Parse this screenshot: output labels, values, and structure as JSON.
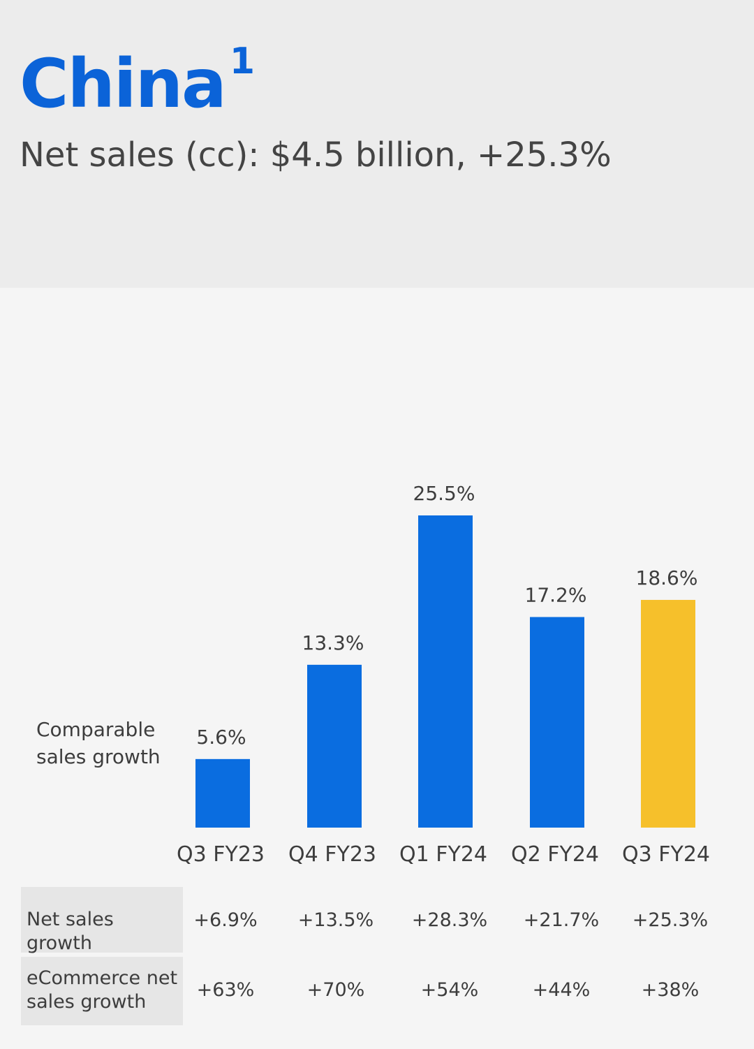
{
  "header": {
    "title": "China",
    "title_footnote": "1",
    "subtitle": "Net sales (cc): $4.5 billion, +25.3%"
  },
  "colors": {
    "title": "#0b63d8",
    "bar_primary": "#0a6de0",
    "bar_highlight": "#f6c02b"
  },
  "chart_data": {
    "type": "bar",
    "series_label": "Comparable sales growth",
    "categories": [
      "Q3 FY23",
      "Q4 FY23",
      "Q1 FY24",
      "Q2 FY24",
      "Q3 FY24"
    ],
    "values": [
      5.6,
      13.3,
      25.5,
      17.2,
      18.6
    ],
    "value_labels": [
      "5.6%",
      "13.3%",
      "25.5%",
      "17.2%",
      "18.6%"
    ],
    "highlight_index": 4,
    "ylim": [
      0,
      25.5
    ]
  },
  "table": {
    "rows": [
      {
        "label": "Net sales growth",
        "values": [
          "+6.9%",
          "+13.5%",
          "+28.3%",
          "+21.7%",
          "+25.3%"
        ]
      },
      {
        "label": "eCommerce net sales growth",
        "values": [
          "+63%",
          "+70%",
          "+54%",
          "+44%",
          "+38%"
        ]
      }
    ]
  }
}
